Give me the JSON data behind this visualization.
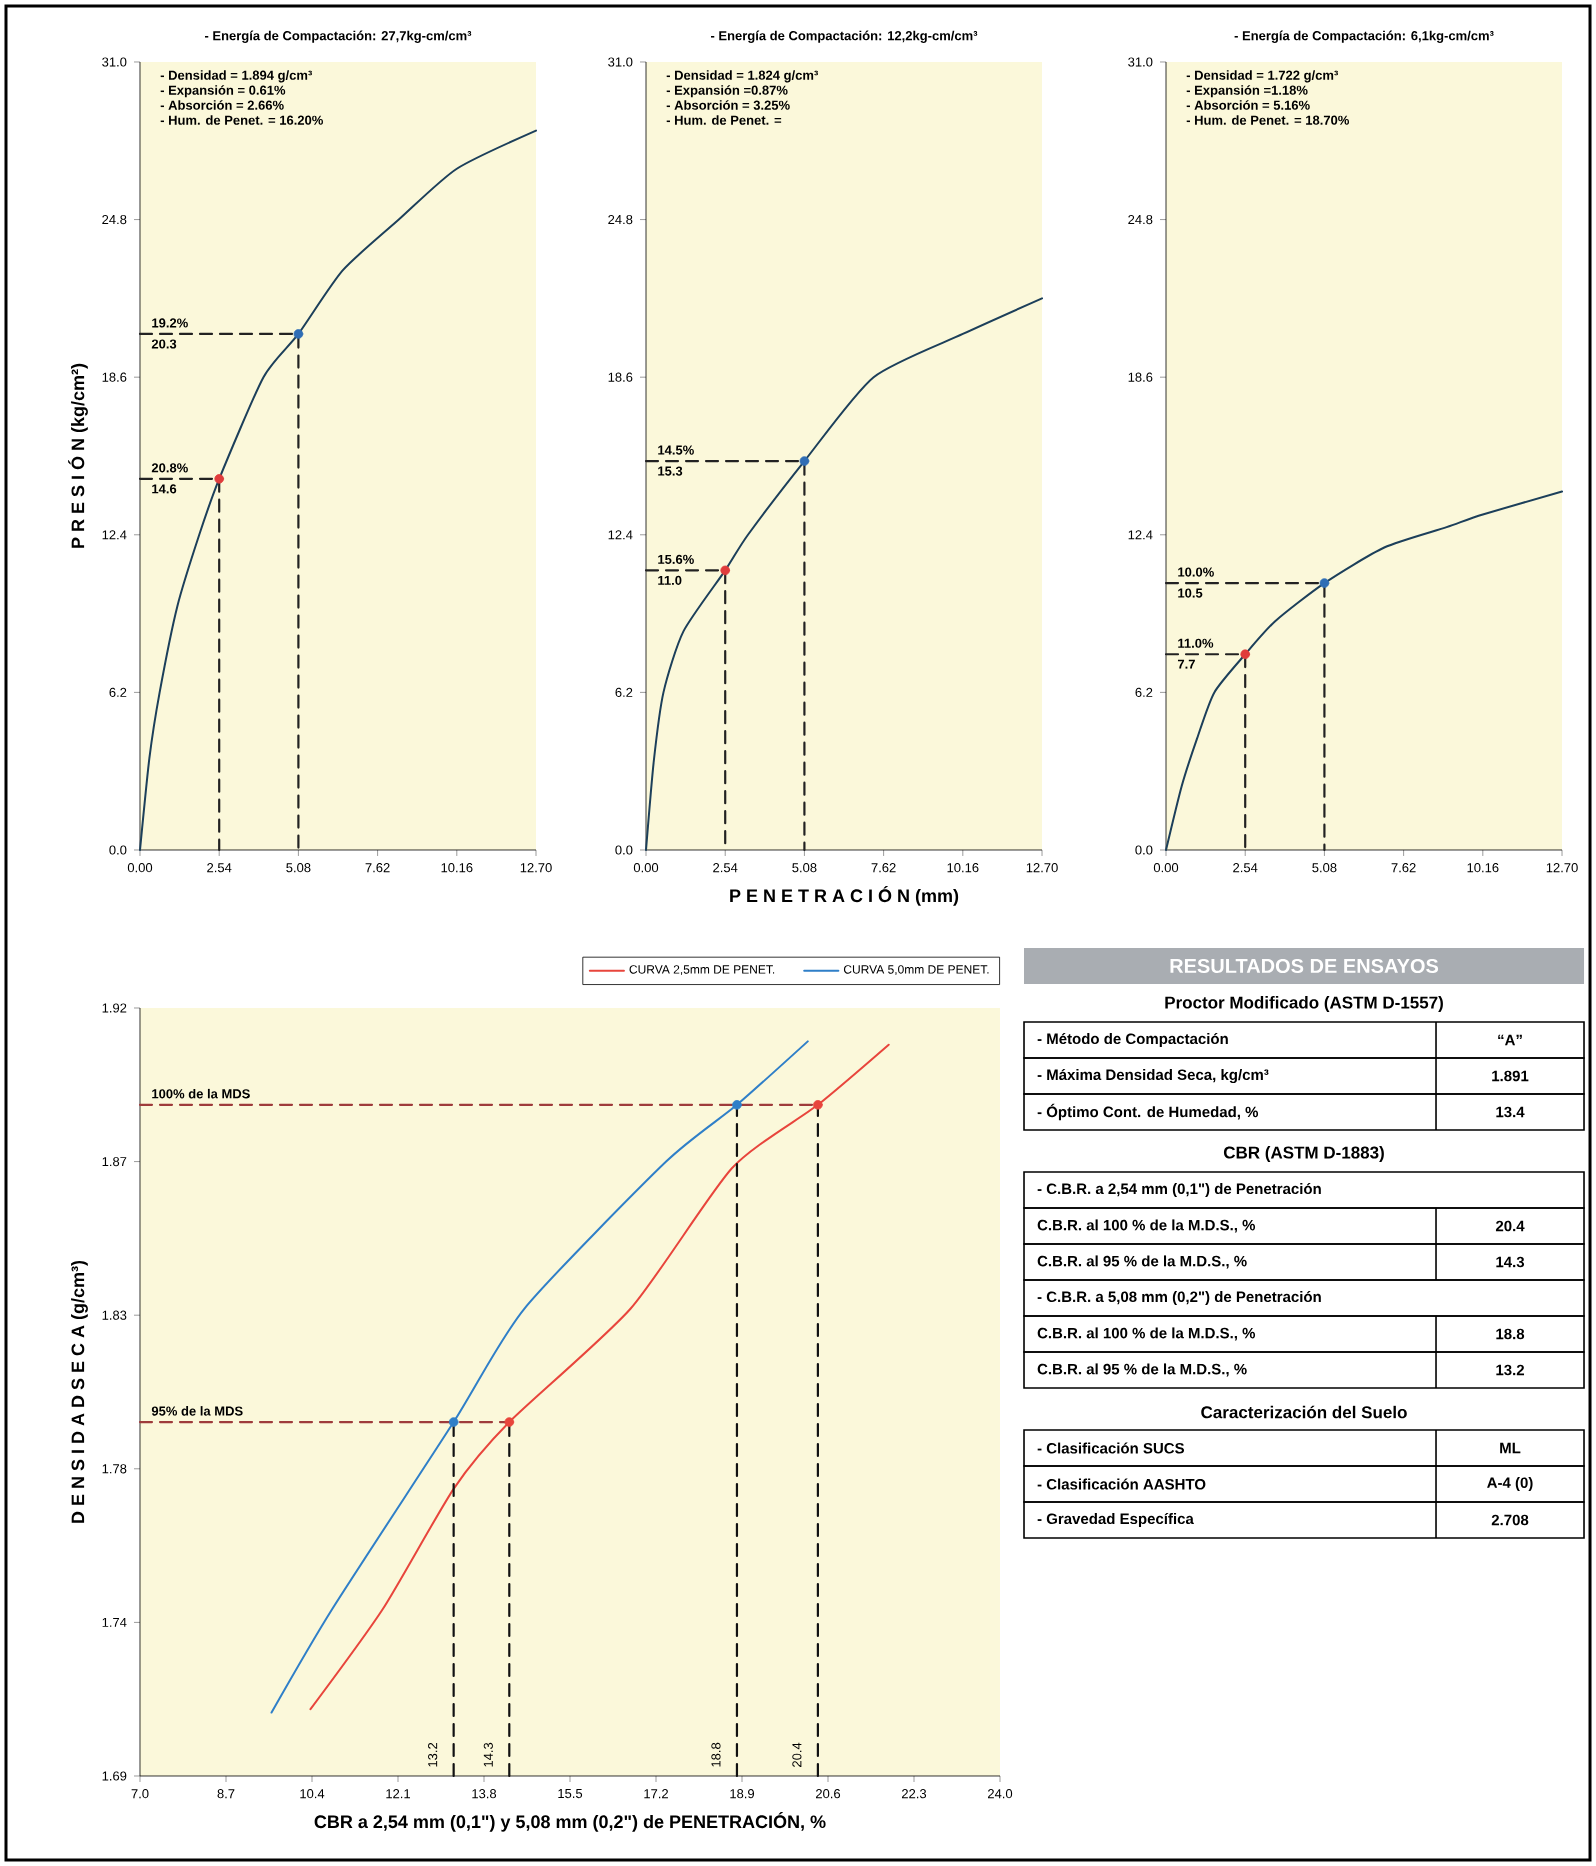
{
  "chart_data": [
    {
      "type": "line",
      "title": "- Energía de Compactación: 27,7kg-cm/cm³",
      "ylabel": "P R E S I Ó N   (kg/cm²)",
      "xlim": [
        0,
        12.7
      ],
      "ylim": [
        0,
        31
      ],
      "xticks": [
        {
          "value": 0,
          "label": "0.00"
        },
        2.54,
        5.08,
        7.62,
        10.16,
        {
          "value": 12.7,
          "label": "12.70"
        }
      ],
      "yticks": [
        {
          "value": 0,
          "label": "0.0"
        },
        6.2,
        12.4,
        18.6,
        24.8,
        {
          "value": 31,
          "label": "31.0"
        }
      ],
      "series": [
        {
          "type": "line",
          "color": "#1c3f5a",
          "x": [
            0,
            0.3,
            0.63,
            1.2,
            1.9,
            2.54,
            3.96,
            5.08,
            6.5,
            8.3,
            10.16,
            12.7
          ],
          "values": [
            0,
            3.6,
            6.2,
            9.6,
            12.4,
            14.6,
            18.6,
            20.3,
            22.8,
            24.8,
            26.8,
            28.3
          ]
        },
        {
          "type": "line",
          "line_style": "dashed",
          "color": "#222222",
          "x": [
            0,
            2.54,
            2.54
          ],
          "values": [
            14.6,
            14.6,
            0
          ]
        },
        {
          "type": "line",
          "line_style": "dashed",
          "color": "#222222",
          "x": [
            0,
            5.08,
            5.08
          ],
          "values": [
            20.3,
            20.3,
            0
          ]
        },
        {
          "type": "scatter",
          "color": "#e03c3c",
          "x": [
            2.54
          ],
          "values": [
            14.6
          ]
        },
        {
          "type": "scatter",
          "color": "#2f6db5",
          "x": [
            5.08
          ],
          "values": [
            20.3
          ]
        }
      ],
      "annotations": [
        "- Densidad = 1.894 g/cm³",
        "- Expansión = 0.61%",
        "- Absorción = 2.66%",
        "- Hum. de Penet. = 16.20%",
        {
          "text": "19.2%",
          "y": 20.3
        },
        {
          "text": "20.3",
          "y": 20.3
        },
        {
          "text": "20.8%",
          "y": 14.6
        },
        {
          "text": "14.6",
          "y": 14.6
        }
      ]
    },
    {
      "type": "line",
      "title": "- Energía de Compactación: 12,2kg-cm/cm³",
      "xlabel": "P E N E T R A C I Ó N   (mm)",
      "xlim": [
        0,
        12.7
      ],
      "ylim": [
        0,
        31
      ],
      "xticks": [
        {
          "value": 0,
          "label": "0.00"
        },
        2.54,
        5.08,
        7.62,
        10.16,
        {
          "value": 12.7,
          "label": "12.70"
        }
      ],
      "yticks": [
        {
          "value": 0,
          "label": "0.0"
        },
        6.2,
        12.4,
        18.6,
        24.8,
        {
          "value": 31,
          "label": "31.0"
        }
      ],
      "series": [
        {
          "type": "line",
          "color": "#1c3f5a",
          "x": [
            0,
            0.25,
            0.56,
            1.2,
            2.54,
            3.27,
            5.08,
            7.3,
            10.16,
            12.7
          ],
          "values": [
            0,
            3.5,
            6.2,
            8.6,
            11.0,
            12.4,
            15.3,
            18.6,
            20.3,
            21.7
          ]
        },
        {
          "type": "line",
          "line_style": "dashed",
          "color": "#222222",
          "x": [
            0,
            2.54,
            2.54
          ],
          "values": [
            11.0,
            11.0,
            0
          ]
        },
        {
          "type": "line",
          "line_style": "dashed",
          "color": "#222222",
          "x": [
            0,
            5.08,
            5.08
          ],
          "values": [
            15.3,
            15.3,
            0
          ]
        },
        {
          "type": "scatter",
          "color": "#e03c3c",
          "x": [
            2.54
          ],
          "values": [
            11.0
          ]
        },
        {
          "type": "scatter",
          "color": "#2f6db5",
          "x": [
            5.08
          ],
          "values": [
            15.3
          ]
        }
      ],
      "annotations": [
        "- Densidad = 1.824 g/cm³",
        "- Expansión =0.87%",
        "- Absorción = 3.25%",
        "- Hum. de Penet. =",
        {
          "text": "14.5%",
          "y": 15.3
        },
        {
          "text": "15.3",
          "y": 15.3
        },
        {
          "text": "15.6%",
          "y": 11.0
        },
        {
          "text": "11.0",
          "y": 11.0
        }
      ]
    },
    {
      "type": "line",
      "title": "- Energía de Compactación: 6,1kg-cm/cm³",
      "xlim": [
        0,
        12.7
      ],
      "ylim": [
        0,
        31
      ],
      "xticks": [
        {
          "value": 0,
          "label": "0.00"
        },
        2.54,
        5.08,
        7.62,
        10.16,
        {
          "value": 12.7,
          "label": "12.70"
        }
      ],
      "yticks": [
        {
          "value": 0,
          "label": "0.0"
        },
        6.2,
        12.4,
        18.6,
        24.8,
        {
          "value": 31,
          "label": "31.0"
        }
      ],
      "series": [
        {
          "type": "line",
          "color": "#1c3f5a",
          "x": [
            0,
            0.5,
            1.0,
            1.55,
            2.54,
            3.5,
            5.08,
            7.0,
            9.0,
            10.16,
            12.7
          ],
          "values": [
            0,
            2.5,
            4.4,
            6.2,
            7.7,
            9.0,
            10.5,
            11.9,
            12.7,
            13.2,
            14.1
          ]
        },
        {
          "type": "line",
          "line_style": "dashed",
          "color": "#222222",
          "x": [
            0,
            2.54,
            2.54
          ],
          "values": [
            7.7,
            7.7,
            0
          ]
        },
        {
          "type": "line",
          "line_style": "dashed",
          "color": "#222222",
          "x": [
            0,
            5.08,
            5.08
          ],
          "values": [
            10.5,
            10.5,
            0
          ]
        },
        {
          "type": "scatter",
          "color": "#e03c3c",
          "x": [
            2.54
          ],
          "values": [
            7.7
          ]
        },
        {
          "type": "scatter",
          "color": "#2f6db5",
          "x": [
            5.08
          ],
          "values": [
            10.5
          ]
        }
      ],
      "annotations": [
        "- Densidad = 1.722 g/cm³",
        "- Expansión =1.18%",
        "- Absorción = 5.16%",
        "- Hum. de Penet. = 18.70%",
        {
          "text": "10.0%",
          "y": 10.5
        },
        {
          "text": "10.5",
          "y": 10.5
        },
        {
          "text": "11.0%",
          "y": 7.7
        },
        {
          "text": "7.7",
          "y": 7.7
        }
      ]
    },
    {
      "type": "line",
      "xlabel": "CBR a 2,54 mm (0,1\") y 5,08 mm (0,2\") de PENETRACIÓN, %",
      "ylabel": "D E N S I D A D   S E C A   (g/cm³)",
      "xlim": [
        7,
        24
      ],
      "ylim": [
        1.69,
        1.92
      ],
      "legend": "top right",
      "xticks": [
        {
          "value": 7,
          "label": "7.0"
        },
        8.7,
        10.4,
        12.1,
        13.8,
        15.5,
        17.2,
        18.9,
        20.6,
        22.3,
        {
          "value": 24,
          "label": "24.0"
        }
      ],
      "yticks": [
        1.69,
        {
          "value": 1.736,
          "label": "1.74"
        },
        {
          "value": 1.782,
          "label": "1.78"
        },
        {
          "value": 1.828,
          "label": "1.83"
        },
        {
          "value": 1.874,
          "label": "1.87"
        },
        1.92
      ],
      "series": [
        {
          "type": "line",
          "name": "CURVA 2,5mm DE PENET.",
          "color": "#e8453c",
          "x": [
            10.37,
            11.8,
            13.2,
            14.3,
            16.7,
            18.7,
            20.4,
            21.8
          ],
          "values": [
            1.71,
            1.74,
            1.776,
            1.796,
            1.83,
            1.872,
            1.891,
            1.909
          ]
        },
        {
          "type": "line",
          "name": "CURVA 5,0mm DE PENET.",
          "color": "#2f7fc8",
          "x": [
            9.6,
            10.8,
            13.2,
            14.6,
            17.4,
            18.8,
            20.2
          ],
          "values": [
            1.709,
            1.74,
            1.796,
            1.83,
            1.874,
            1.891,
            1.91
          ]
        },
        {
          "type": "line",
          "line_style": "dashed",
          "color": "#9e3b3b",
          "x": [
            7,
            20.4
          ],
          "values": [
            1.891,
            1.891
          ]
        },
        {
          "type": "line",
          "line_style": "dashed",
          "color": "#9e3b3b",
          "x": [
            7,
            14.3
          ],
          "values": [
            1.796,
            1.796
          ]
        },
        {
          "type": "line",
          "line_style": "dashed",
          "color": "#111111",
          "x": [
            13.2,
            13.2
          ],
          "values": [
            1.69,
            1.796
          ]
        },
        {
          "type": "line",
          "line_style": "dashed",
          "color": "#111111",
          "x": [
            14.3,
            14.3
          ],
          "values": [
            1.69,
            1.796
          ]
        },
        {
          "type": "line",
          "line_style": "dashed",
          "color": "#111111",
          "x": [
            18.8,
            18.8
          ],
          "values": [
            1.69,
            1.891
          ]
        },
        {
          "type": "line",
          "line_style": "dashed",
          "color": "#111111",
          "x": [
            20.4,
            20.4
          ],
          "values": [
            1.69,
            1.891
          ]
        },
        {
          "type": "scatter",
          "color": "#e8453c",
          "x": [
            14.3,
            20.4
          ],
          "values": [
            1.796,
            1.891
          ]
        },
        {
          "type": "scatter",
          "color": "#2f7fc8",
          "x": [
            13.2,
            18.8
          ],
          "values": [
            1.796,
            1.891
          ]
        }
      ],
      "annotations": [
        {
          "text": "100% de la MDS",
          "y": 1.891
        },
        {
          "text": "95% de la MDS",
          "y": 1.796
        },
        {
          "text": "13.2",
          "x": 13.2
        },
        {
          "text": "14.3",
          "x": 14.3
        },
        {
          "text": "18.8",
          "x": 18.8
        },
        {
          "text": "20.4",
          "x": 20.4
        }
      ]
    },
    {
      "type": "other",
      "title": "RESULTADOS DE ENSAYOS",
      "subtitle": "Proctor Modificado (ASTM D-1557)",
      "categories": [
        "- Método de Compactación",
        "- Máxima Densidad Seca, kg/cm³",
        "- Óptimo Cont. de Humedad, %"
      ],
      "value_labels": [
        "“A”",
        "1.891",
        "13.4"
      ]
    },
    {
      "type": "other",
      "subtitle": "CBR (ASTM D-1883)",
      "categories": [
        "- C.B.R. a 2,54 mm (0,1\") de Penetración",
        "C.B.R. al 100 % de la M.D.S., %",
        "C.B.R. al 95 % de la M.D.S., %",
        "- C.B.R. a 5,08 mm (0,2\") de Penetración",
        "C.B.R. al 100 % de la M.D.S., %",
        "C.B.R. al 95 % de la M.D.S., %"
      ],
      "value_labels": [
        null,
        "20.4",
        "14.3",
        null,
        "18.8",
        "13.2"
      ]
    },
    {
      "type": "other",
      "subtitle": "Caracterización del Suelo",
      "categories": [
        "- Clasificación SUCS",
        "- Clasificación AASHTO",
        "- Gravedad Específica"
      ],
      "value_labels": [
        "ML",
        "A-4 (0)",
        "2.708"
      ]
    }
  ]
}
